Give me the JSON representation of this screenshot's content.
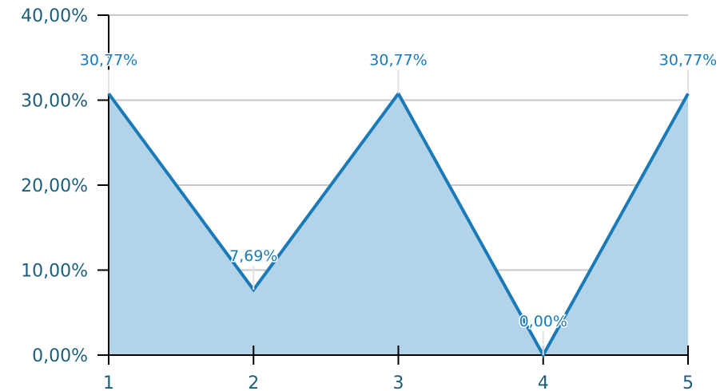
{
  "chart_data": {
    "type": "area",
    "x": [
      1,
      2,
      3,
      4,
      5
    ],
    "values": [
      30.77,
      7.69,
      30.77,
      0.0,
      30.77
    ],
    "data_labels": [
      "30,77%",
      "7,69%",
      "30,77%",
      "0,00%",
      "30,77%"
    ],
    "x_tick_labels": [
      "1",
      "2",
      "3",
      "4",
      "5"
    ],
    "y_ticks": [
      0,
      10,
      20,
      30,
      40
    ],
    "y_tick_labels": [
      "0,00%",
      "10,00%",
      "20,00%",
      "30,00%",
      "40,00%"
    ],
    "ylim": [
      0,
      40
    ],
    "xlim": [
      1,
      5
    ],
    "grid": true,
    "line_color": "#1a7ab8",
    "fill_color": "#b3d3e8"
  }
}
